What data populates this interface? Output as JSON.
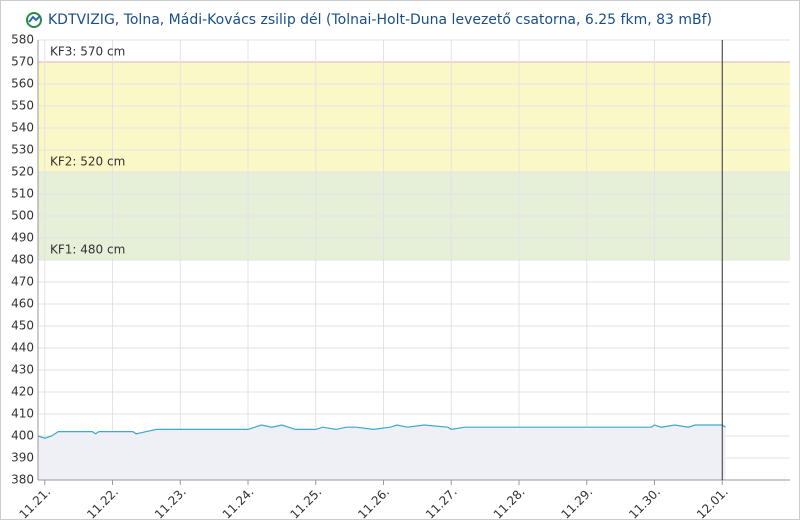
{
  "chart_data": {
    "type": "line",
    "title": "KDTVIZIG, Tolna, Mádi-Kovács zsilip dél (Tolnai-Holt-Duna levezető csatorna, 6.25 fkm, 83 mBf)",
    "x": [
      20.9,
      21.0,
      21.1,
      21.2,
      21.7,
      21.75,
      21.8,
      22.3,
      22.35,
      22.5,
      22.65,
      24.0,
      24.1,
      24.2,
      24.35,
      24.5,
      24.7,
      25.0,
      25.1,
      25.3,
      25.45,
      25.6,
      25.85,
      26.1,
      26.2,
      26.35,
      26.6,
      26.95,
      27.0,
      27.2,
      28.0,
      29.0,
      29.95,
      30.0,
      30.1,
      30.3,
      30.5,
      30.6,
      31.0,
      31.05
    ],
    "series": [
      {
        "color": "#3fa9c8",
        "values": [
          400,
          399,
          400,
          402,
          402,
          401,
          402,
          402,
          401,
          402,
          403,
          403,
          404,
          405,
          404,
          405,
          403,
          403,
          404,
          403,
          404,
          404,
          403,
          404,
          405,
          404,
          405,
          404,
          403,
          404,
          404,
          404,
          404,
          405,
          404,
          405,
          404,
          405,
          405,
          404
        ]
      }
    ],
    "area_color": "#eef0f6",
    "xlim": [
      20.9,
      32
    ],
    "xticks": [
      {
        "value": 21,
        "label": "11.21."
      },
      {
        "value": 22,
        "label": "11.22."
      },
      {
        "value": 23,
        "label": "11.23."
      },
      {
        "value": 24,
        "label": "11.24."
      },
      {
        "value": 25,
        "label": "11.25."
      },
      {
        "value": 26,
        "label": "11.26."
      },
      {
        "value": 27,
        "label": "11.27."
      },
      {
        "value": 28,
        "label": "11.28."
      },
      {
        "value": 29,
        "label": "11.29."
      },
      {
        "value": 30,
        "label": "11.30."
      },
      {
        "value": 31,
        "label": "12.01."
      }
    ],
    "ylim": [
      380,
      580
    ],
    "yticks": [
      380,
      390,
      400,
      410,
      420,
      430,
      440,
      450,
      460,
      470,
      480,
      490,
      500,
      510,
      520,
      530,
      540,
      550,
      560,
      570,
      580
    ],
    "grid": true,
    "now_x": 31,
    "thresholds": [
      {
        "value": 480,
        "label": "KF1: 480 cm",
        "color": "#e6f0d8"
      },
      {
        "value": 520,
        "label": "KF2: 520 cm",
        "color": "#fbf8c8"
      },
      {
        "value": 570,
        "label": "KF3: 570 cm",
        "color": "#e8a0a0"
      }
    ]
  }
}
